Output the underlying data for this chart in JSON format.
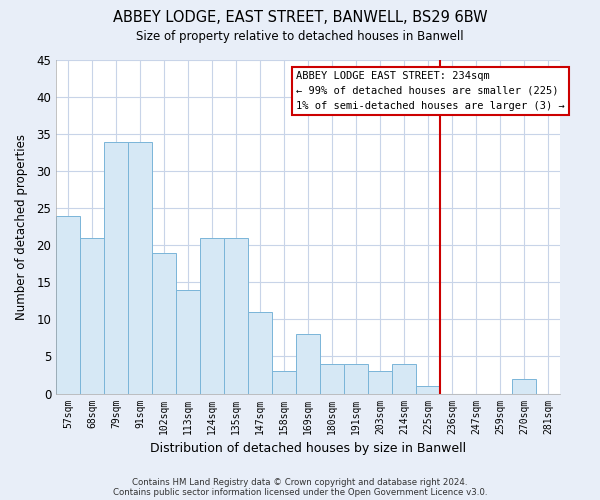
{
  "title": "ABBEY LODGE, EAST STREET, BANWELL, BS29 6BW",
  "subtitle": "Size of property relative to detached houses in Banwell",
  "xlabel": "Distribution of detached houses by size in Banwell",
  "ylabel": "Number of detached properties",
  "categories": [
    "57sqm",
    "68sqm",
    "79sqm",
    "91sqm",
    "102sqm",
    "113sqm",
    "124sqm",
    "135sqm",
    "147sqm",
    "158sqm",
    "169sqm",
    "180sqm",
    "191sqm",
    "203sqm",
    "214sqm",
    "225sqm",
    "236sqm",
    "247sqm",
    "259sqm",
    "270sqm",
    "281sqm"
  ],
  "values": [
    24,
    21,
    34,
    34,
    19,
    14,
    21,
    21,
    11,
    3,
    8,
    4,
    4,
    3,
    4,
    1,
    0,
    0,
    0,
    2,
    0
  ],
  "bar_color": "#d6e8f5",
  "bar_edge_color": "#7ab5d8",
  "vline_color": "#cc0000",
  "ylim": [
    0,
    45
  ],
  "yticks": [
    0,
    5,
    10,
    15,
    20,
    25,
    30,
    35,
    40,
    45
  ],
  "annotation_title": "ABBEY LODGE EAST STREET: 234sqm",
  "annotation_line1": "← 99% of detached houses are smaller (225)",
  "annotation_line2": "1% of semi-detached houses are larger (3) →",
  "annotation_box_edge": "#cc0000",
  "footer_line1": "Contains HM Land Registry data © Crown copyright and database right 2024.",
  "footer_line2": "Contains public sector information licensed under the Open Government Licence v3.0.",
  "fig_bg_color": "#e8eef8",
  "plot_bg_color": "#ffffff",
  "grid_color": "#c8d4e8"
}
